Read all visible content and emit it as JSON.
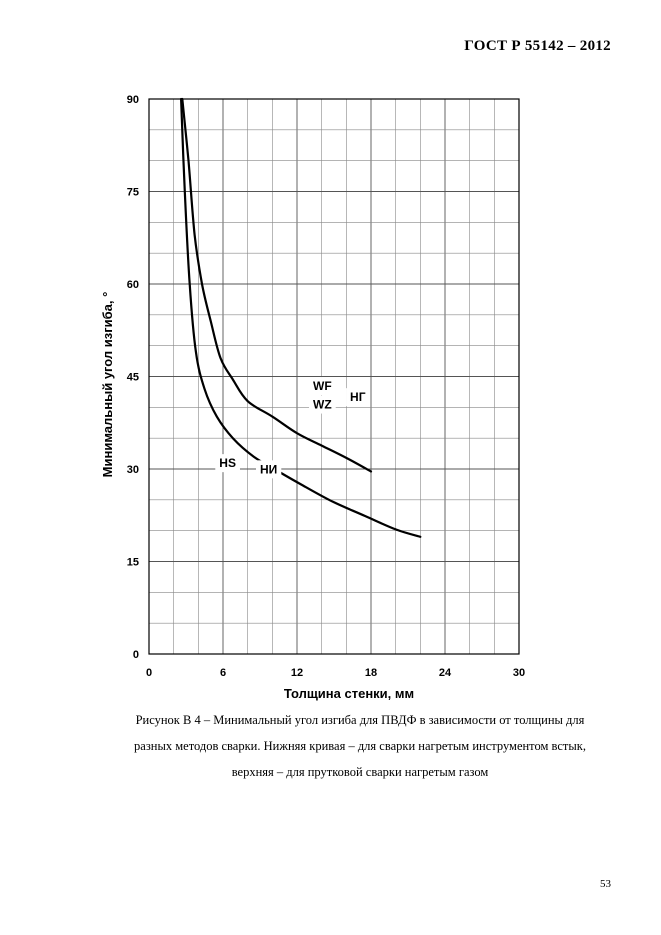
{
  "header": {
    "standard": "ГОСТ Р  55142 – 2012"
  },
  "figure": {
    "caption_lines": [
      "Рисунок В 4 – Минимальный угол изгиба для ПВДФ в зависимости от толщины для",
      "разных методов сварки. Нижняя кривая – для сварки нагретым инструментом встык,",
      "верхняя – для прутковой сварки нагретым газом"
    ]
  },
  "page_number": "53",
  "chart_data": {
    "type": "line",
    "title": "",
    "xlabel": "Толщина стенки, мм",
    "ylabel": "Минимальный угол изгиба, °",
    "xlim": [
      0,
      30
    ],
    "ylim": [
      0,
      90
    ],
    "x_ticks": [
      "0",
      "6",
      "12",
      "18",
      "24",
      "30"
    ],
    "y_ticks": [
      "0",
      "15",
      "30",
      "45",
      "60",
      "75",
      "90"
    ],
    "grid": true,
    "series": [
      {
        "x": [
          2.7,
          3.2,
          3.7,
          4.3,
          5.0,
          5.8,
          6.8,
          8.0,
          10.0,
          12.0,
          14.0,
          16.0,
          18.0
        ],
        "y": [
          90,
          80,
          68,
          60,
          54,
          48,
          44.5,
          41,
          38.5,
          35.8,
          33.8,
          31.8,
          29.6
        ]
      },
      {
        "x": [
          2.6,
          2.9,
          3.3,
          3.8,
          4.5,
          5.5,
          6.8,
          8.5,
          10.5,
          12.5,
          15.0,
          17.5,
          20.0,
          22.0
        ],
        "y": [
          90,
          75,
          60,
          49,
          43,
          38.5,
          35,
          32,
          29.6,
          27.3,
          24.6,
          22.4,
          20.2,
          19
        ]
      }
    ],
    "annotations": [
      {
        "text": "WF",
        "x": 13.3,
        "y": 42.8
      },
      {
        "text": "WZ",
        "x": 13.3,
        "y": 39.8
      },
      {
        "text": "НГ",
        "x": 16.3,
        "y": 41.0
      },
      {
        "text": "HS",
        "x": 5.7,
        "y": 30.3
      },
      {
        "text": "НИ",
        "x": 9.0,
        "y": 29.3
      }
    ]
  }
}
